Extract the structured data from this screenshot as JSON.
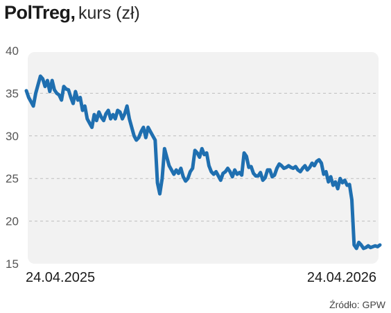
{
  "header": {
    "name": "PolTreg,",
    "subtitle": "kurs (zł)"
  },
  "source": "Źródło: GPW",
  "colors": {
    "line": "#1f6fb0",
    "plot_bg": "#f2f2f2",
    "grid": "#bdbdbd"
  },
  "chart_data": {
    "type": "line",
    "title": "PolTreg, kurs (zł)",
    "xlabel": "",
    "ylabel": "",
    "grid": true,
    "ylim": [
      15,
      40
    ],
    "yticks": [
      15,
      20,
      25,
      30,
      35,
      40
    ],
    "xtick_labels": [
      "24.04.2025",
      "24.04.2026"
    ],
    "series": [
      {
        "values": [
          35.3,
          34.5,
          34.0,
          33.5,
          35.0,
          36.0,
          37.0,
          36.7,
          35.8,
          36.5,
          35.2,
          36.5,
          35.4,
          35.0,
          34.8,
          34.2,
          35.8,
          35.5,
          35.4,
          34.5,
          33.8,
          35.2,
          34.2,
          34.5,
          33.0,
          33.5,
          32.0,
          31.5,
          31.0,
          32.5,
          31.8,
          32.8,
          32.2,
          31.8,
          32.6,
          33.0,
          32.0,
          32.5,
          32.0,
          33.0,
          32.8,
          32.0,
          32.6,
          33.5,
          32.0,
          31.0,
          30.0,
          29.5,
          29.8,
          30.5,
          31.0,
          29.8,
          31.0,
          30.5,
          30.0,
          29.5,
          24.5,
          23.2,
          25.0,
          28.5,
          27.5,
          26.5,
          26.0,
          25.5,
          26.0,
          25.6,
          26.2,
          25.2,
          24.7,
          25.0,
          25.8,
          26.2,
          28.3,
          28.0,
          27.5,
          28.5,
          27.8,
          28.0,
          26.5,
          25.8,
          25.5,
          25.8,
          25.3,
          24.8,
          25.6,
          25.8,
          26.2,
          25.8,
          25.2,
          26.0,
          25.5,
          25.7,
          25.4,
          28.0,
          27.6,
          26.3,
          26.4,
          25.6,
          25.3,
          25.3,
          25.7,
          24.8,
          25.1,
          26.0,
          26.0,
          25.2,
          25.4,
          26.2,
          26.7,
          26.5,
          26.2,
          26.3,
          26.5,
          26.3,
          26.2,
          26.4,
          26.0,
          25.8,
          26.2,
          26.5,
          26.0,
          26.3,
          26.8,
          26.5,
          27.0,
          27.2,
          26.8,
          25.5,
          25.8,
          24.6,
          25.2,
          24.2,
          24.6,
          23.8,
          25.0,
          24.5,
          24.8,
          24.2,
          24.3,
          22.5,
          17.2,
          16.8,
          17.5,
          17.2,
          16.8,
          16.9,
          17.1,
          16.9,
          17.0,
          17.1,
          17.0,
          17.2
        ]
      }
    ]
  }
}
